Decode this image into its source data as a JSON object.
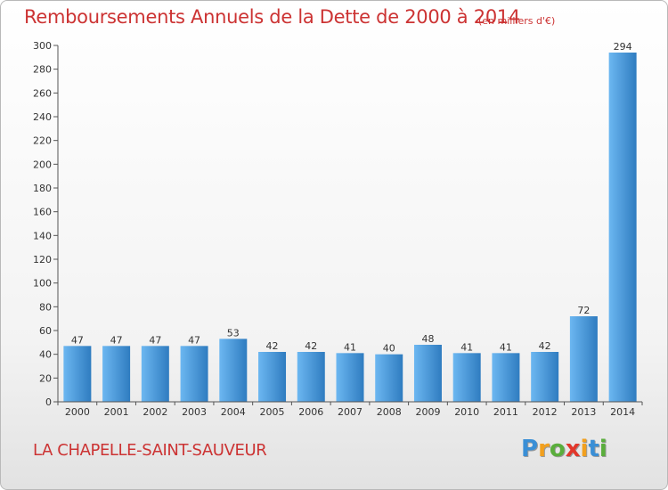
{
  "header": {
    "title": "Remboursements Annuels de la Dette de 2000 à 2014",
    "unit": "(en milliers d'€)"
  },
  "footer": {
    "commune": "LA CHAPELLE-SAINT-SAUVEUR",
    "brand": "Proxiti",
    "brand_letters": [
      {
        "char": "P",
        "color": "#3a8fd6"
      },
      {
        "char": "r",
        "color": "#f2a01e"
      },
      {
        "char": "o",
        "color": "#5aae3c"
      },
      {
        "char": "x",
        "color": "#e2372b"
      },
      {
        "char": "i",
        "color": "#f2a01e"
      },
      {
        "char": "t",
        "color": "#3a8fd6"
      },
      {
        "char": "i",
        "color": "#5aae3c"
      }
    ]
  },
  "colors": {
    "title": "#cc3333",
    "bar_light": "#62b0ee",
    "bar_dark": "#2f7cc0",
    "axis": "#555555"
  },
  "chart_data": {
    "type": "bar",
    "title": "Remboursements Annuels de la Dette de 2000 à 2014",
    "subtitle": "(en milliers d'€)",
    "xlabel": "",
    "ylabel": "",
    "categories": [
      "2000",
      "2001",
      "2002",
      "2003",
      "2004",
      "2005",
      "2006",
      "2007",
      "2008",
      "2009",
      "2010",
      "2011",
      "2012",
      "2013",
      "2014"
    ],
    "values": [
      47,
      47,
      47,
      47,
      53,
      42,
      42,
      41,
      40,
      48,
      41,
      41,
      42,
      72,
      294
    ],
    "ylim": [
      0,
      300
    ],
    "yticks": [
      0,
      20,
      40,
      60,
      80,
      100,
      120,
      140,
      160,
      180,
      200,
      220,
      240,
      260,
      280,
      300
    ],
    "grid": false,
    "legend": "none"
  }
}
